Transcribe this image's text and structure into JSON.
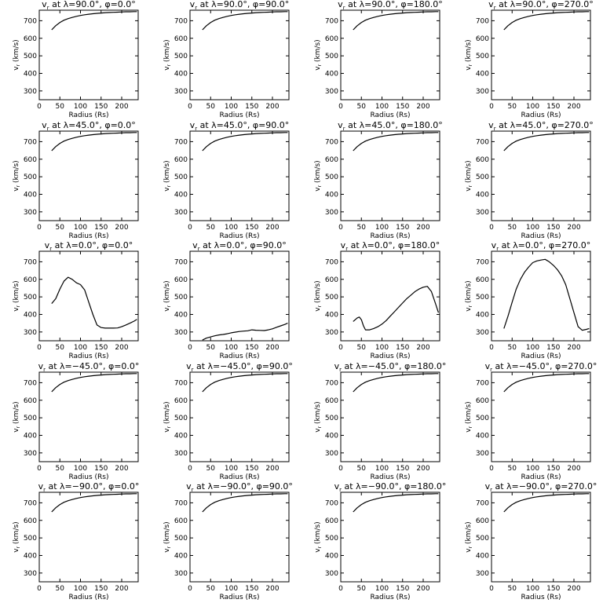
{
  "chart_data": {
    "type": "line",
    "layout": "grid-5x4",
    "xlabel": "Radius (Rs)",
    "ylabel": "v_r (km/s)",
    "xlim": [
      0,
      240
    ],
    "ylim": [
      250,
      760
    ],
    "xticks": [
      0,
      50,
      100,
      150,
      200
    ],
    "yticks": [
      300,
      400,
      500,
      600,
      700
    ],
    "grid": false,
    "panels": [
      {
        "title": "v_r at λ=90.0°, φ=0.0°",
        "x": [
          30,
          40,
          50,
          60,
          70,
          80,
          90,
          100,
          110,
          120,
          130,
          140,
          150,
          160,
          170,
          180,
          190,
          200,
          210,
          220,
          230,
          237
        ],
        "y": [
          648,
          672,
          690,
          703,
          712,
          719,
          725,
          730,
          734,
          737,
          740,
          742,
          744,
          746,
          747,
          748,
          749,
          750,
          751,
          751,
          752,
          752
        ]
      },
      {
        "title": "v_r at λ=90.0°, φ=90.0°",
        "x": [
          30,
          40,
          50,
          60,
          70,
          80,
          90,
          100,
          110,
          120,
          130,
          140,
          150,
          160,
          170,
          180,
          190,
          200,
          210,
          220,
          230,
          237
        ],
        "y": [
          648,
          672,
          690,
          703,
          712,
          719,
          725,
          730,
          734,
          737,
          740,
          742,
          744,
          746,
          747,
          748,
          749,
          750,
          751,
          751,
          752,
          752
        ]
      },
      {
        "title": "v_r at λ=90.0°, φ=180.0°",
        "x": [
          30,
          40,
          50,
          60,
          70,
          80,
          90,
          100,
          110,
          120,
          130,
          140,
          150,
          160,
          170,
          180,
          190,
          200,
          210,
          220,
          230,
          237
        ],
        "y": [
          648,
          672,
          690,
          703,
          712,
          719,
          725,
          730,
          734,
          737,
          740,
          742,
          744,
          746,
          747,
          748,
          749,
          750,
          751,
          751,
          752,
          752
        ]
      },
      {
        "title": "v_r at λ=90.0°, φ=270.0°",
        "x": [
          30,
          40,
          50,
          60,
          70,
          80,
          90,
          100,
          110,
          120,
          130,
          140,
          150,
          160,
          170,
          180,
          190,
          200,
          210,
          220,
          230,
          237
        ],
        "y": [
          648,
          672,
          690,
          703,
          712,
          719,
          725,
          730,
          734,
          737,
          740,
          742,
          744,
          746,
          747,
          748,
          749,
          750,
          751,
          751,
          752,
          752
        ]
      },
      {
        "title": "v_r at λ=45.0°, φ=0.0°",
        "x": [
          30,
          40,
          50,
          60,
          70,
          80,
          90,
          100,
          110,
          120,
          130,
          140,
          150,
          160,
          170,
          180,
          190,
          200,
          210,
          220,
          230,
          237
        ],
        "y": [
          648,
          672,
          690,
          703,
          712,
          719,
          725,
          730,
          734,
          737,
          740,
          742,
          744,
          746,
          747,
          748,
          749,
          750,
          751,
          751,
          752,
          752
        ]
      },
      {
        "title": "v_r at λ=45.0°, φ=90.0°",
        "x": [
          30,
          40,
          50,
          60,
          70,
          80,
          90,
          100,
          110,
          120,
          130,
          140,
          150,
          160,
          170,
          180,
          190,
          200,
          210,
          220,
          230,
          237
        ],
        "y": [
          648,
          672,
          690,
          703,
          712,
          719,
          725,
          730,
          734,
          737,
          740,
          742,
          744,
          746,
          747,
          748,
          749,
          750,
          751,
          751,
          752,
          752
        ]
      },
      {
        "title": "v_r at λ=45.0°, φ=180.0°",
        "x": [
          30,
          40,
          50,
          60,
          70,
          80,
          90,
          100,
          110,
          120,
          130,
          140,
          150,
          160,
          170,
          180,
          190,
          200,
          210,
          220,
          230,
          237
        ],
        "y": [
          648,
          672,
          690,
          703,
          712,
          719,
          725,
          730,
          734,
          737,
          740,
          742,
          744,
          746,
          747,
          748,
          749,
          750,
          751,
          751,
          752,
          752
        ]
      },
      {
        "title": "v_r at λ=45.0°, φ=270.0°",
        "x": [
          30,
          40,
          50,
          60,
          70,
          80,
          90,
          100,
          110,
          120,
          130,
          140,
          150,
          160,
          170,
          180,
          190,
          200,
          210,
          220,
          230,
          237
        ],
        "y": [
          648,
          672,
          690,
          703,
          712,
          719,
          725,
          730,
          734,
          737,
          740,
          742,
          744,
          746,
          747,
          748,
          749,
          750,
          751,
          751,
          752,
          752
        ]
      },
      {
        "title": "v_r at λ=0.0°, φ=0.0°",
        "x": [
          30,
          40,
          50,
          60,
          70,
          80,
          90,
          100,
          110,
          120,
          130,
          140,
          150,
          160,
          170,
          180,
          190,
          200,
          210,
          220,
          230,
          237
        ],
        "y": [
          462,
          490,
          545,
          590,
          612,
          600,
          580,
          570,
          540,
          470,
          400,
          340,
          325,
          322,
          322,
          322,
          323,
          330,
          340,
          350,
          362,
          372
        ]
      },
      {
        "title": "v_r at λ=0.0°, φ=90.0°",
        "x": [
          30,
          40,
          50,
          60,
          70,
          80,
          90,
          100,
          110,
          120,
          130,
          140,
          150,
          160,
          170,
          180,
          190,
          200,
          210,
          220,
          230,
          237
        ],
        "y": [
          254,
          265,
          272,
          278,
          283,
          286,
          290,
          295,
          299,
          303,
          305,
          307,
          312,
          310,
          309,
          308,
          312,
          318,
          327,
          335,
          343,
          350
        ]
      },
      {
        "title": "v_r at λ=0.0°, φ=180.0°",
        "x": [
          30,
          40,
          45,
          50,
          55,
          60,
          70,
          80,
          90,
          100,
          110,
          120,
          130,
          140,
          150,
          160,
          170,
          180,
          190,
          200,
          210,
          220,
          230,
          237
        ],
        "y": [
          360,
          380,
          385,
          370,
          335,
          312,
          312,
          320,
          330,
          345,
          365,
          390,
          415,
          440,
          465,
          490,
          510,
          530,
          545,
          555,
          560,
          530,
          460,
          410
        ]
      },
      {
        "title": "v_r at λ=0.0°, φ=270.0°",
        "x": [
          30,
          40,
          50,
          60,
          70,
          80,
          90,
          100,
          110,
          120,
          130,
          140,
          150,
          160,
          170,
          180,
          190,
          200,
          210,
          220,
          230,
          237
        ],
        "y": [
          320,
          390,
          470,
          545,
          600,
          640,
          670,
          695,
          705,
          710,
          714,
          700,
          680,
          655,
          620,
          570,
          490,
          410,
          330,
          310,
          315,
          320
        ]
      },
      {
        "title": "v_r at λ=−45.0°, φ=0.0°",
        "x": [
          30,
          40,
          50,
          60,
          70,
          80,
          90,
          100,
          110,
          120,
          130,
          140,
          150,
          160,
          170,
          180,
          190,
          200,
          210,
          220,
          230,
          237
        ],
        "y": [
          648,
          672,
          690,
          703,
          712,
          719,
          725,
          730,
          734,
          737,
          740,
          742,
          744,
          746,
          747,
          748,
          749,
          750,
          751,
          751,
          752,
          752
        ]
      },
      {
        "title": "v_r at λ=−45.0°, φ=90.0°",
        "x": [
          30,
          40,
          50,
          60,
          70,
          80,
          90,
          100,
          110,
          120,
          130,
          140,
          150,
          160,
          170,
          180,
          190,
          200,
          210,
          220,
          230,
          237
        ],
        "y": [
          648,
          672,
          690,
          703,
          712,
          719,
          725,
          730,
          734,
          737,
          740,
          742,
          744,
          746,
          747,
          748,
          749,
          750,
          751,
          751,
          752,
          752
        ]
      },
      {
        "title": "v_r at λ=−45.0°, φ=180.0°",
        "x": [
          30,
          40,
          50,
          60,
          70,
          80,
          90,
          100,
          110,
          120,
          130,
          140,
          150,
          160,
          170,
          180,
          190,
          200,
          210,
          220,
          230,
          237
        ],
        "y": [
          648,
          672,
          690,
          703,
          712,
          719,
          725,
          730,
          734,
          737,
          740,
          742,
          744,
          746,
          747,
          748,
          749,
          750,
          751,
          751,
          752,
          752
        ]
      },
      {
        "title": "v_r at λ=−45.0°, φ=270.0°",
        "x": [
          30,
          40,
          50,
          60,
          70,
          80,
          90,
          100,
          110,
          120,
          130,
          140,
          150,
          160,
          170,
          180,
          190,
          200,
          210,
          220,
          230,
          237
        ],
        "y": [
          648,
          672,
          690,
          703,
          712,
          719,
          725,
          730,
          734,
          737,
          740,
          742,
          744,
          746,
          747,
          748,
          749,
          750,
          751,
          751,
          752,
          752
        ]
      },
      {
        "title": "v_r at λ=−90.0°, φ=0.0°",
        "x": [
          30,
          40,
          50,
          60,
          70,
          80,
          90,
          100,
          110,
          120,
          130,
          140,
          150,
          160,
          170,
          180,
          190,
          200,
          210,
          220,
          230,
          237
        ],
        "y": [
          648,
          672,
          690,
          703,
          712,
          719,
          725,
          730,
          734,
          737,
          740,
          742,
          744,
          746,
          747,
          748,
          749,
          750,
          751,
          751,
          752,
          752
        ]
      },
      {
        "title": "v_r at λ=−90.0°, φ=90.0°",
        "x": [
          30,
          40,
          50,
          60,
          70,
          80,
          90,
          100,
          110,
          120,
          130,
          140,
          150,
          160,
          170,
          180,
          190,
          200,
          210,
          220,
          230,
          237
        ],
        "y": [
          648,
          672,
          690,
          703,
          712,
          719,
          725,
          730,
          734,
          737,
          740,
          742,
          744,
          746,
          747,
          748,
          749,
          750,
          751,
          751,
          752,
          752
        ]
      },
      {
        "title": "v_r at λ=−90.0°, φ=180.0°",
        "x": [
          30,
          40,
          50,
          60,
          70,
          80,
          90,
          100,
          110,
          120,
          130,
          140,
          150,
          160,
          170,
          180,
          190,
          200,
          210,
          220,
          230,
          237
        ],
        "y": [
          648,
          672,
          690,
          703,
          712,
          719,
          725,
          730,
          734,
          737,
          740,
          742,
          744,
          746,
          747,
          748,
          749,
          750,
          751,
          751,
          752,
          752
        ]
      },
      {
        "title": "v_r at λ=−90.0°, φ=270.0°",
        "x": [
          30,
          40,
          50,
          60,
          70,
          80,
          90,
          100,
          110,
          120,
          130,
          140,
          150,
          160,
          170,
          180,
          190,
          200,
          210,
          220,
          230,
          237
        ],
        "y": [
          648,
          672,
          690,
          703,
          712,
          719,
          725,
          730,
          734,
          737,
          740,
          742,
          744,
          746,
          747,
          748,
          749,
          750,
          751,
          751,
          752,
          752
        ]
      }
    ]
  }
}
